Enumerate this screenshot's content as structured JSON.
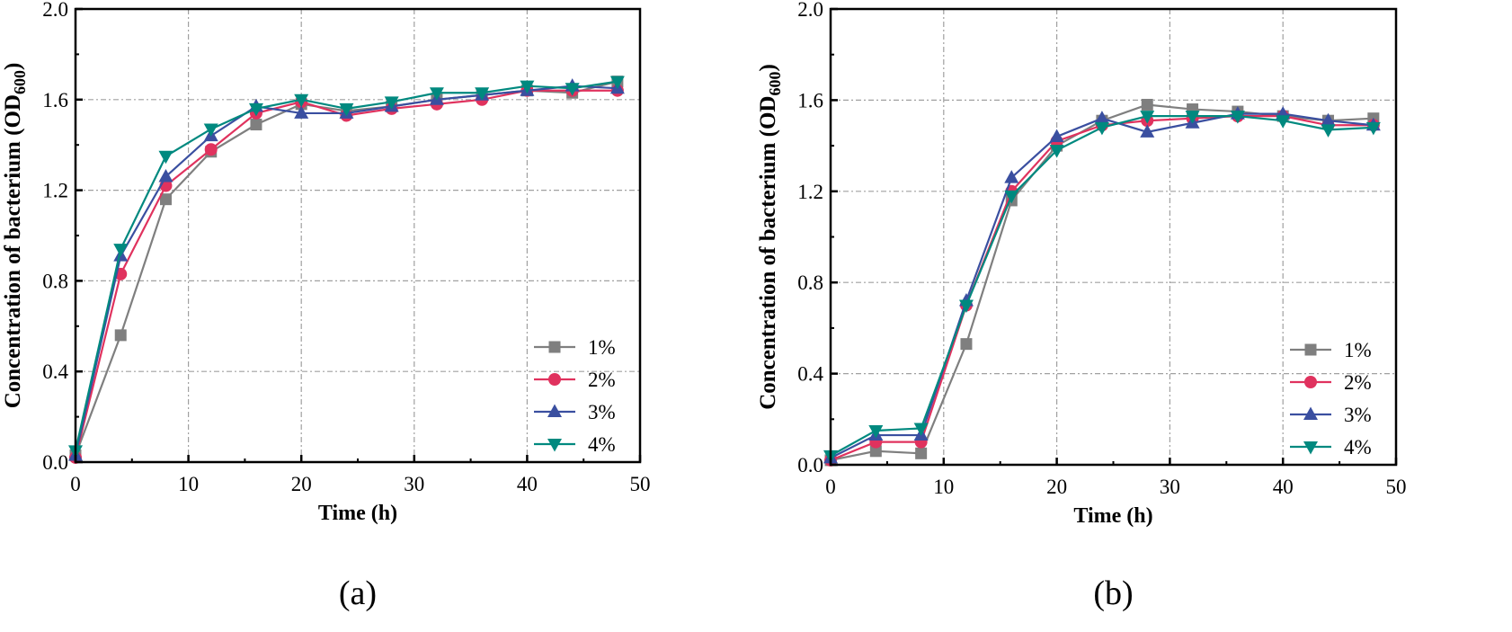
{
  "chart_data": [
    {
      "type": "line",
      "panel_label": "(a)",
      "xlabel": "Time (h)",
      "ylabel_main": "Concentration of bacterium (OD",
      "ylabel_sub": "600",
      "ylabel_close": ")",
      "xlim": [
        0,
        50
      ],
      "ylim": [
        0,
        2.0
      ],
      "xticks": [
        "0",
        "10",
        "20",
        "30",
        "40",
        "50"
      ],
      "yticks": [
        "0.0",
        "0.4",
        "0.8",
        "1.2",
        "1.6",
        "2.0"
      ],
      "grid": true,
      "legend_position": "bottom-right",
      "x": [
        0,
        4,
        8,
        12,
        16,
        20,
        24,
        28,
        32,
        36,
        40,
        44,
        48
      ],
      "series": [
        {
          "name": "1%",
          "color": "#7f7f7f",
          "marker": "square",
          "values": [
            0.03,
            0.56,
            1.16,
            1.37,
            1.49,
            1.58,
            1.55,
            1.57,
            1.6,
            1.62,
            1.64,
            1.63,
            1.68
          ]
        },
        {
          "name": "2%",
          "color": "#e0325e",
          "marker": "circle",
          "values": [
            0.02,
            0.83,
            1.22,
            1.38,
            1.54,
            1.59,
            1.53,
            1.56,
            1.58,
            1.6,
            1.64,
            1.64,
            1.64
          ]
        },
        {
          "name": "3%",
          "color": "#3a4fa0",
          "marker": "triangle-up",
          "values": [
            0.03,
            0.91,
            1.26,
            1.44,
            1.57,
            1.54,
            1.54,
            1.57,
            1.6,
            1.62,
            1.64,
            1.66,
            1.65
          ]
        },
        {
          "name": "4%",
          "color": "#00897f",
          "marker": "triangle-down",
          "values": [
            0.05,
            0.94,
            1.35,
            1.47,
            1.56,
            1.6,
            1.56,
            1.59,
            1.63,
            1.63,
            1.66,
            1.65,
            1.68
          ]
        }
      ]
    },
    {
      "type": "line",
      "panel_label": "(b)",
      "xlabel": "Time (h)",
      "ylabel_main": "Concentration of bacterium (OD",
      "ylabel_sub": "600",
      "ylabel_close": ")",
      "xlim": [
        0,
        50
      ],
      "ylim": [
        0,
        2.0
      ],
      "xticks": [
        "0",
        "10",
        "20",
        "30",
        "40",
        "50"
      ],
      "yticks": [
        "0.0",
        "0.4",
        "0.8",
        "1.2",
        "1.6",
        "2.0"
      ],
      "grid": true,
      "legend_position": "bottom-right",
      "x": [
        0,
        4,
        8,
        12,
        16,
        20,
        24,
        28,
        32,
        36,
        40,
        44,
        48
      ],
      "series": [
        {
          "name": "1%",
          "color": "#7f7f7f",
          "marker": "square",
          "values": [
            0.02,
            0.06,
            0.05,
            0.53,
            1.16,
            1.4,
            1.51,
            1.58,
            1.56,
            1.55,
            1.53,
            1.51,
            1.52
          ]
        },
        {
          "name": "2%",
          "color": "#e0325e",
          "marker": "circle",
          "values": [
            0.02,
            0.1,
            0.1,
            0.7,
            1.2,
            1.42,
            1.49,
            1.51,
            1.52,
            1.53,
            1.53,
            1.49,
            1.49
          ]
        },
        {
          "name": "3%",
          "color": "#3a4fa0",
          "marker": "triangle-up",
          "values": [
            0.03,
            0.13,
            0.13,
            0.72,
            1.26,
            1.44,
            1.52,
            1.46,
            1.5,
            1.54,
            1.54,
            1.51,
            1.49
          ]
        },
        {
          "name": "4%",
          "color": "#00897f",
          "marker": "triangle-down",
          "values": [
            0.04,
            0.15,
            0.16,
            0.7,
            1.18,
            1.38,
            1.48,
            1.53,
            1.53,
            1.53,
            1.51,
            1.47,
            1.48
          ]
        }
      ]
    }
  ]
}
